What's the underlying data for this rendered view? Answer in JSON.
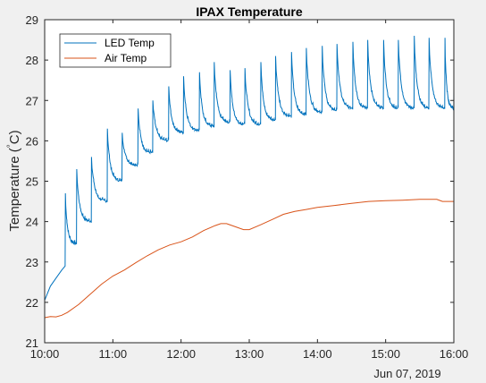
{
  "chart_data": {
    "type": "line",
    "title": "IPAX Temperature",
    "xlabel": "",
    "ylabel": "Temperature (°C)",
    "ylabel_parts": [
      "Temperature (",
      "°",
      "C)"
    ],
    "x_date_label": "Jun 07, 2019",
    "xlim": [
      "10:00",
      "16:00"
    ],
    "ylim": [
      21,
      29
    ],
    "x_ticks": [
      "10:00",
      "11:00",
      "12:00",
      "13:00",
      "14:00",
      "15:00",
      "16:00"
    ],
    "y_ticks": [
      21,
      22,
      23,
      24,
      25,
      26,
      27,
      28,
      29
    ],
    "grid": false,
    "legend_position": "top-left",
    "colors": {
      "led": "#0072BD",
      "air": "#D95319",
      "axes_bg": "#ffffff",
      "figure_bg": "#f0f0f0"
    },
    "series": [
      {
        "name": "LED Temp",
        "color": "#0072BD",
        "cycle_period_min": 13.5,
        "warmup": [
          [
            "10:00",
            22.05
          ],
          [
            "10:05",
            22.4
          ],
          [
            "10:10",
            22.6
          ],
          [
            "10:15",
            22.8
          ],
          [
            "10:18",
            22.9
          ]
        ],
        "cycles": [
          {
            "start": "10:18",
            "peak": 24.7,
            "floor": 23.45
          },
          {
            "start": "10:28",
            "peak": 25.3,
            "floor": 24.0
          },
          {
            "start": "10:41",
            "peak": 25.6,
            "floor": 24.5
          },
          {
            "start": "10:55",
            "peak": 26.3,
            "floor": 25.0
          },
          {
            "start": "11:08",
            "peak": 26.2,
            "floor": 25.4
          },
          {
            "start": "11:22",
            "peak": 26.8,
            "floor": 25.7
          },
          {
            "start": "11:35",
            "peak": 27.0,
            "floor": 26.0
          },
          {
            "start": "11:49",
            "peak": 27.35,
            "floor": 26.2
          },
          {
            "start": "12:02",
            "peak": 27.6,
            "floor": 26.25
          },
          {
            "start": "12:16",
            "peak": 27.7,
            "floor": 26.35
          },
          {
            "start": "12:29",
            "peak": 27.95,
            "floor": 26.45
          },
          {
            "start": "12:43",
            "peak": 27.75,
            "floor": 26.4
          },
          {
            "start": "12:56",
            "peak": 27.8,
            "floor": 26.4
          },
          {
            "start": "13:10",
            "peak": 27.95,
            "floor": 26.5
          },
          {
            "start": "13:23",
            "peak": 28.1,
            "floor": 26.6
          },
          {
            "start": "13:37",
            "peak": 28.2,
            "floor": 26.65
          },
          {
            "start": "13:50",
            "peak": 28.3,
            "floor": 26.7
          },
          {
            "start": "14:04",
            "peak": 28.35,
            "floor": 26.75
          },
          {
            "start": "14:17",
            "peak": 28.4,
            "floor": 26.8
          },
          {
            "start": "14:31",
            "peak": 28.45,
            "floor": 26.8
          },
          {
            "start": "14:44",
            "peak": 28.5,
            "floor": 26.8
          },
          {
            "start": "14:58",
            "peak": 28.5,
            "floor": 26.8
          },
          {
            "start": "15:11",
            "peak": 28.5,
            "floor": 26.8
          },
          {
            "start": "15:25",
            "peak": 28.6,
            "floor": 26.8
          },
          {
            "start": "15:38",
            "peak": 28.55,
            "floor": 26.8
          },
          {
            "start": "15:52",
            "peak": 28.55,
            "floor": 26.8
          }
        ],
        "tail": [
          [
            "16:00",
            27.3
          ]
        ]
      },
      {
        "name": "Air Temp",
        "color": "#D95319",
        "points": [
          [
            "10:00",
            21.62
          ],
          [
            "10:05",
            21.65
          ],
          [
            "10:10",
            21.64
          ],
          [
            "10:15",
            21.68
          ],
          [
            "10:20",
            21.75
          ],
          [
            "10:30",
            21.95
          ],
          [
            "10:40",
            22.2
          ],
          [
            "10:50",
            22.45
          ],
          [
            "11:00",
            22.65
          ],
          [
            "11:10",
            22.8
          ],
          [
            "11:20",
            22.98
          ],
          [
            "11:30",
            23.15
          ],
          [
            "11:40",
            23.3
          ],
          [
            "11:50",
            23.42
          ],
          [
            "12:00",
            23.5
          ],
          [
            "12:10",
            23.62
          ],
          [
            "12:20",
            23.78
          ],
          [
            "12:30",
            23.9
          ],
          [
            "12:35",
            23.95
          ],
          [
            "12:40",
            23.95
          ],
          [
            "12:45",
            23.9
          ],
          [
            "12:50",
            23.85
          ],
          [
            "12:55",
            23.8
          ],
          [
            "13:00",
            23.8
          ],
          [
            "13:10",
            23.92
          ],
          [
            "13:20",
            24.05
          ],
          [
            "13:30",
            24.18
          ],
          [
            "13:40",
            24.25
          ],
          [
            "13:50",
            24.3
          ],
          [
            "14:00",
            24.35
          ],
          [
            "14:15",
            24.4
          ],
          [
            "14:30",
            24.45
          ],
          [
            "14:45",
            24.5
          ],
          [
            "15:00",
            24.52
          ],
          [
            "15:15",
            24.53
          ],
          [
            "15:30",
            24.55
          ],
          [
            "15:45",
            24.55
          ],
          [
            "15:50",
            24.5
          ],
          [
            "16:00",
            24.5
          ]
        ]
      }
    ]
  }
}
